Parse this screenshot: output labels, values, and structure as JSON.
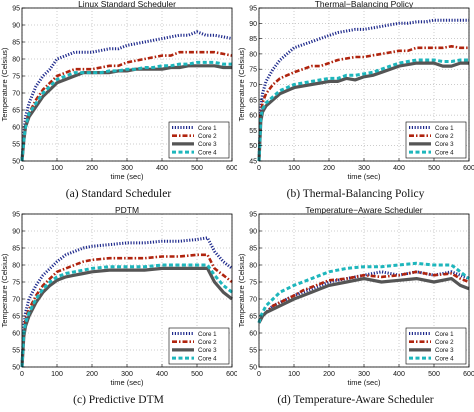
{
  "colors": {
    "Core 1": "#1f2a8c",
    "Core 2": "#b0240e",
    "Core 3": "#555555",
    "Core 4": "#1eb6bc"
  },
  "chart_data": [
    {
      "type": "line",
      "title": "Linux Standard Scheduler",
      "caption": "(a) Standard Scheduler",
      "xlabel": "time (sec)",
      "ylabel": "Temperature (Celsius)",
      "xlim": [
        0,
        600
      ],
      "ylim": [
        50,
        95
      ],
      "xticks": [
        "0",
        "100",
        "200",
        "300",
        "400",
        "500",
        "600"
      ],
      "yticks": [
        "50",
        "55",
        "60",
        "65",
        "70",
        "75",
        "80",
        "85",
        "90",
        "95"
      ],
      "grid": true,
      "legend": "bottom-right",
      "series": [
        {
          "name": "Core 1",
          "style": "dotted",
          "x": [
            0,
            5,
            10,
            20,
            40,
            60,
            80,
            100,
            125,
            150,
            175,
            200,
            225,
            250,
            275,
            300,
            325,
            350,
            375,
            400,
            425,
            450,
            475,
            500,
            525,
            550,
            575,
            600
          ],
          "y": [
            50,
            58,
            63,
            67,
            72,
            75,
            77,
            80,
            81,
            82,
            82,
            82,
            82.5,
            83,
            83,
            84,
            84.5,
            85,
            85.5,
            86,
            86.5,
            87,
            87,
            88,
            87,
            87,
            86.5,
            86
          ]
        },
        {
          "name": "Core 2",
          "style": "dashdot",
          "x": [
            0,
            5,
            10,
            20,
            40,
            60,
            80,
            100,
            125,
            150,
            175,
            200,
            225,
            250,
            275,
            300,
            325,
            350,
            375,
            400,
            425,
            450,
            475,
            500,
            525,
            550,
            575,
            600
          ],
          "y": [
            50,
            57,
            61,
            64,
            68,
            71,
            73,
            75,
            76,
            77,
            77,
            77,
            77.5,
            78,
            78,
            79,
            79.5,
            80,
            80.5,
            81,
            81,
            82,
            82,
            82,
            82,
            82,
            81.5,
            81
          ]
        },
        {
          "name": "Core 3",
          "style": "solid",
          "x": [
            0,
            5,
            10,
            20,
            40,
            60,
            80,
            100,
            125,
            150,
            175,
            200,
            225,
            250,
            275,
            300,
            325,
            350,
            375,
            400,
            425,
            450,
            475,
            500,
            525,
            550,
            575,
            600
          ],
          "y": [
            50,
            56,
            60,
            63,
            66,
            69,
            71,
            73,
            74,
            75,
            76,
            76,
            76,
            76,
            76.5,
            76.5,
            77,
            77,
            77,
            77,
            77.5,
            77.5,
            78,
            78,
            78,
            78,
            77.5,
            77.5
          ]
        },
        {
          "name": "Core 4",
          "style": "dashed",
          "x": [
            0,
            5,
            10,
            20,
            40,
            60,
            80,
            100,
            125,
            150,
            175,
            200,
            225,
            250,
            275,
            300,
            325,
            350,
            375,
            400,
            425,
            450,
            475,
            500,
            525,
            550,
            575,
            600
          ],
          "y": [
            50,
            56,
            60,
            64,
            67,
            70,
            72,
            74,
            75,
            76,
            76,
            76,
            76,
            76.5,
            76.5,
            77,
            77,
            77.5,
            77.5,
            78,
            78,
            78.5,
            78.5,
            79,
            79,
            79,
            78.5,
            78.5
          ]
        }
      ]
    },
    {
      "type": "line",
      "title": "Thermal−Balancing Policy",
      "caption": "(b) Thermal-Balancing Policy",
      "xlabel": "time (sec)",
      "ylabel": "Temperature (Celsius)",
      "xlim": [
        0,
        600
      ],
      "ylim": [
        45,
        95
      ],
      "xticks": [
        "0",
        "100",
        "200",
        "300",
        "400",
        "500",
        "600"
      ],
      "yticks": [
        "45",
        "50",
        "55",
        "60",
        "65",
        "70",
        "75",
        "80",
        "85",
        "90",
        "95"
      ],
      "grid": true,
      "legend": "bottom-right",
      "series": [
        {
          "name": "Core 1",
          "style": "dotted",
          "x": [
            0,
            5,
            10,
            20,
            40,
            60,
            80,
            100,
            125,
            150,
            175,
            200,
            225,
            250,
            275,
            300,
            325,
            350,
            375,
            400,
            425,
            450,
            475,
            500,
            525,
            550,
            575,
            600
          ],
          "y": [
            45,
            62,
            67,
            71,
            75,
            78,
            80,
            82,
            83,
            84,
            85,
            86,
            87,
            87.5,
            88,
            88,
            88.5,
            89,
            89.5,
            90,
            90,
            90.5,
            90.5,
            91,
            91,
            91,
            91,
            91
          ]
        },
        {
          "name": "Core 2",
          "style": "dashdot",
          "x": [
            0,
            5,
            10,
            20,
            40,
            60,
            80,
            100,
            125,
            150,
            175,
            200,
            225,
            250,
            275,
            300,
            325,
            350,
            375,
            400,
            425,
            450,
            475,
            500,
            525,
            550,
            575,
            600
          ],
          "y": [
            45,
            60,
            64,
            67,
            70,
            72,
            73,
            74,
            75,
            76,
            76,
            77,
            78,
            78.5,
            79,
            79,
            79.5,
            80,
            80.5,
            81,
            81,
            82,
            82,
            82,
            82,
            82.5,
            82,
            82
          ]
        },
        {
          "name": "Core 3",
          "style": "solid",
          "x": [
            0,
            5,
            10,
            20,
            40,
            60,
            80,
            100,
            125,
            150,
            175,
            200,
            225,
            250,
            275,
            300,
            325,
            350,
            375,
            400,
            425,
            450,
            475,
            500,
            525,
            550,
            575,
            600
          ],
          "y": [
            45,
            58,
            61,
            63,
            65,
            67,
            68,
            69,
            69.5,
            70,
            70.5,
            71,
            71,
            72,
            71.5,
            72.5,
            73,
            74,
            75,
            76,
            76.5,
            77,
            77,
            77,
            76,
            76,
            77,
            77
          ]
        },
        {
          "name": "Core 4",
          "style": "dashed",
          "x": [
            0,
            5,
            10,
            20,
            40,
            60,
            80,
            100,
            125,
            150,
            175,
            200,
            225,
            250,
            275,
            300,
            325,
            350,
            375,
            400,
            425,
            450,
            475,
            500,
            525,
            550,
            575,
            600
          ],
          "y": [
            45,
            59,
            62,
            64,
            66,
            68,
            69,
            70,
            70.5,
            71,
            71.5,
            72,
            72,
            73,
            73,
            73.5,
            74,
            75,
            76,
            77,
            77.5,
            78,
            78,
            78,
            77.5,
            77.5,
            78,
            78
          ]
        }
      ]
    },
    {
      "type": "line",
      "title": "PDTM",
      "caption": "(c) Predictive DTM",
      "xlabel": "time (sec)",
      "ylabel": "Temperature (Celsius)",
      "xlim": [
        0,
        600
      ],
      "ylim": [
        50,
        95
      ],
      "xticks": [
        "0",
        "100",
        "200",
        "300",
        "400",
        "500",
        "600"
      ],
      "yticks": [
        "50",
        "55",
        "60",
        "65",
        "70",
        "75",
        "80",
        "85",
        "90",
        "95"
      ],
      "grid": true,
      "legend": "bottom-right",
      "series": [
        {
          "name": "Core 1",
          "style": "dotted",
          "x": [
            0,
            5,
            10,
            20,
            40,
            60,
            80,
            100,
            125,
            150,
            175,
            200,
            250,
            300,
            350,
            400,
            450,
            500,
            530,
            550,
            575,
            600
          ],
          "y": [
            50,
            62,
            66,
            70,
            74,
            77,
            79,
            81,
            83,
            84,
            85,
            85.5,
            86,
            86.5,
            86.5,
            87,
            87,
            87.5,
            88,
            84,
            81,
            79
          ]
        },
        {
          "name": "Core 2",
          "style": "dashdot",
          "x": [
            0,
            5,
            10,
            20,
            40,
            60,
            80,
            100,
            125,
            150,
            175,
            200,
            250,
            300,
            350,
            400,
            450,
            500,
            530,
            550,
            575,
            600
          ],
          "y": [
            50,
            60,
            64,
            67,
            71,
            74,
            76,
            78,
            79,
            80,
            81,
            81.5,
            82,
            82,
            82,
            82.5,
            82.5,
            83,
            83,
            79,
            77,
            75
          ]
        },
        {
          "name": "Core 3",
          "style": "solid",
          "x": [
            0,
            5,
            10,
            20,
            40,
            60,
            80,
            100,
            125,
            150,
            175,
            200,
            250,
            300,
            350,
            400,
            450,
            500,
            530,
            550,
            575,
            600
          ],
          "y": [
            50,
            59,
            62,
            65,
            69,
            72,
            74,
            75.5,
            76.5,
            77,
            77.5,
            78,
            78.5,
            78.5,
            78.5,
            79,
            79,
            79,
            79,
            75,
            72,
            70
          ]
        },
        {
          "name": "Core 4",
          "style": "dashed",
          "x": [
            0,
            5,
            10,
            20,
            40,
            60,
            80,
            100,
            125,
            150,
            175,
            200,
            250,
            300,
            350,
            400,
            450,
            500,
            530,
            550,
            575,
            600
          ],
          "y": [
            50,
            60,
            63,
            66,
            70,
            73,
            75,
            76.5,
            77.5,
            78,
            78.5,
            79,
            79.5,
            79.5,
            79.5,
            80,
            80,
            80,
            80,
            77,
            74,
            72
          ]
        }
      ]
    },
    {
      "type": "line",
      "title": "Temperature−Aware Scheduler",
      "caption": "(d) Temperature-Aware Scheduler",
      "xlabel": "time (sec)",
      "ylabel": "Temperature (Celsius)",
      "xlim": [
        0,
        600
      ],
      "ylim": [
        50,
        95
      ],
      "xticks": [
        "0",
        "100",
        "200",
        "300",
        "400",
        "500",
        "600"
      ],
      "yticks": [
        "50",
        "55",
        "60",
        "65",
        "70",
        "75",
        "80",
        "85",
        "90",
        "95"
      ],
      "grid": true,
      "legend": "bottom-right",
      "series": [
        {
          "name": "Core 1",
          "style": "dotted",
          "x": [
            0,
            5,
            10,
            20,
            40,
            60,
            80,
            100,
            125,
            150,
            175,
            200,
            250,
            300,
            350,
            400,
            450,
            500,
            550,
            575,
            600
          ],
          "y": [
            63,
            64,
            65,
            66,
            68,
            69,
            70,
            71,
            72,
            73,
            74,
            75,
            76,
            77,
            78,
            77,
            78,
            77,
            78,
            77,
            76
          ]
        },
        {
          "name": "Core 2",
          "style": "dashdot",
          "x": [
            0,
            5,
            10,
            20,
            40,
            60,
            80,
            100,
            125,
            150,
            175,
            200,
            250,
            300,
            350,
            400,
            450,
            500,
            550,
            575,
            600
          ],
          "y": [
            63,
            64,
            65,
            66,
            68,
            69,
            70,
            71,
            72.5,
            73.5,
            74.5,
            75.5,
            76,
            77,
            76.5,
            77,
            78,
            77,
            77.5,
            76,
            75
          ]
        },
        {
          "name": "Core 3",
          "style": "solid",
          "x": [
            0,
            5,
            10,
            20,
            40,
            60,
            80,
            100,
            125,
            150,
            175,
            200,
            250,
            300,
            350,
            400,
            450,
            500,
            550,
            575,
            600
          ],
          "y": [
            63,
            64,
            65,
            66,
            67,
            68,
            69,
            70,
            71,
            72,
            73,
            74,
            75,
            76,
            75,
            75.5,
            76,
            75,
            76,
            74,
            73
          ]
        },
        {
          "name": "Core 4",
          "style": "dashed",
          "x": [
            0,
            5,
            10,
            20,
            40,
            60,
            80,
            100,
            125,
            150,
            175,
            200,
            250,
            300,
            350,
            400,
            450,
            500,
            550,
            575,
            600
          ],
          "y": [
            63,
            65,
            66,
            68,
            70,
            72,
            73,
            74,
            75,
            76,
            77,
            78,
            79,
            79.5,
            79.5,
            80,
            80.5,
            80,
            80,
            78,
            76
          ]
        }
      ]
    }
  ]
}
